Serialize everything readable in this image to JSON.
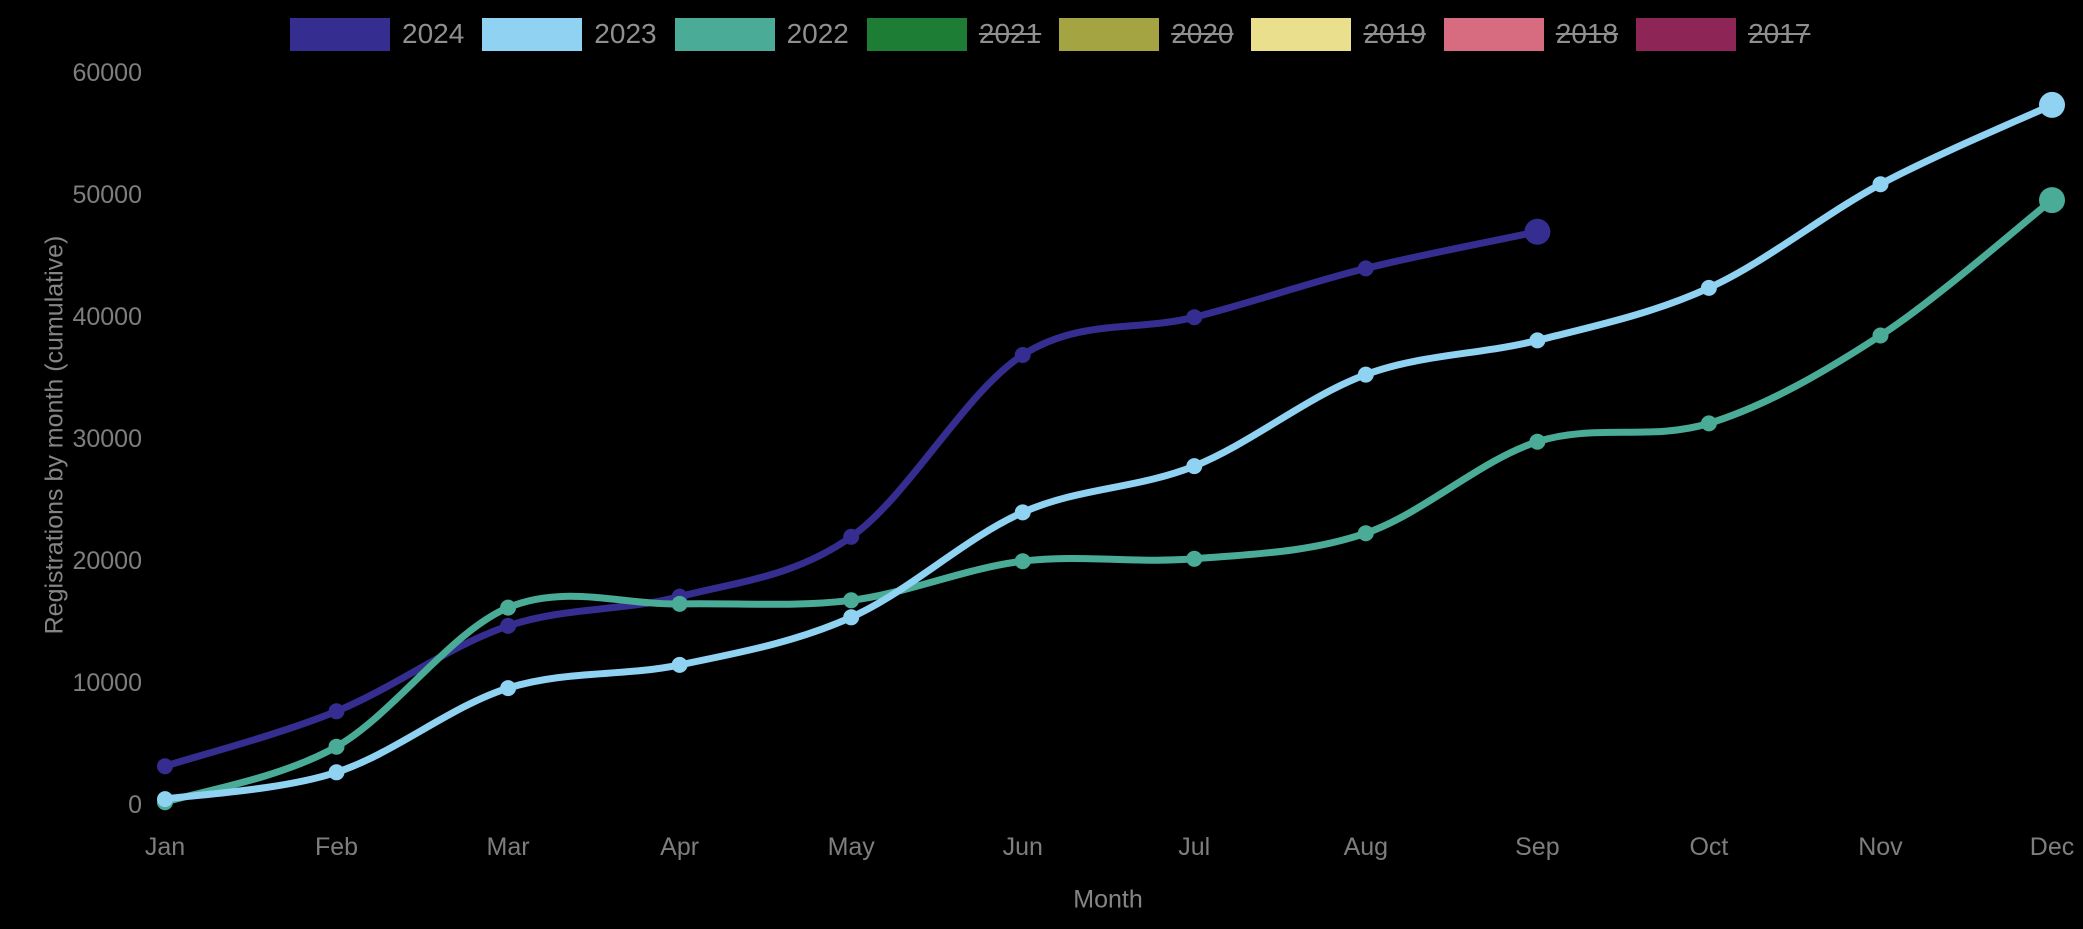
{
  "chart_data": {
    "type": "line",
    "title": "",
    "xlabel": "Month",
    "ylabel": "Registrations by month (cumulative)",
    "x_categories": [
      "Jan",
      "Feb",
      "Mar",
      "Apr",
      "May",
      "Jun",
      "Jul",
      "Aug",
      "Sep",
      "Oct",
      "Nov",
      "Dec"
    ],
    "y_ticks": [
      0,
      10000,
      20000,
      30000,
      40000,
      50000,
      60000
    ],
    "ylim": [
      0,
      60000
    ],
    "grid": false,
    "legend_position": "top",
    "background_color": "#000000",
    "tick_color": "#7e7e7e",
    "legend_text_color": "#8f8f8f",
    "series": [
      {
        "name": "2024",
        "color": "#352d8f",
        "hidden": false,
        "values": [
          3100,
          7600,
          14600,
          17000,
          21900,
          36800,
          39900,
          43900,
          46900
        ]
      },
      {
        "name": "2023",
        "color": "#8fd2f2",
        "hidden": false,
        "values": [
          400,
          2600,
          9500,
          11400,
          15300,
          23900,
          27700,
          35200,
          38000,
          42300,
          50800,
          57300
        ]
      },
      {
        "name": "2022",
        "color": "#4aab97",
        "hidden": false,
        "values": [
          150,
          4700,
          16100,
          16400,
          16700,
          19900,
          20100,
          22200,
          29700,
          31200,
          38400,
          49500
        ]
      },
      {
        "name": "2021",
        "color": "#1e7d35",
        "hidden": true,
        "values": []
      },
      {
        "name": "2020",
        "color": "#a4a442",
        "hidden": true,
        "values": []
      },
      {
        "name": "2019",
        "color": "#e9df8d",
        "hidden": true,
        "values": []
      },
      {
        "name": "2018",
        "color": "#d76b80",
        "hidden": true,
        "values": []
      },
      {
        "name": "2017",
        "color": "#8d2557",
        "hidden": true,
        "values": []
      }
    ]
  }
}
